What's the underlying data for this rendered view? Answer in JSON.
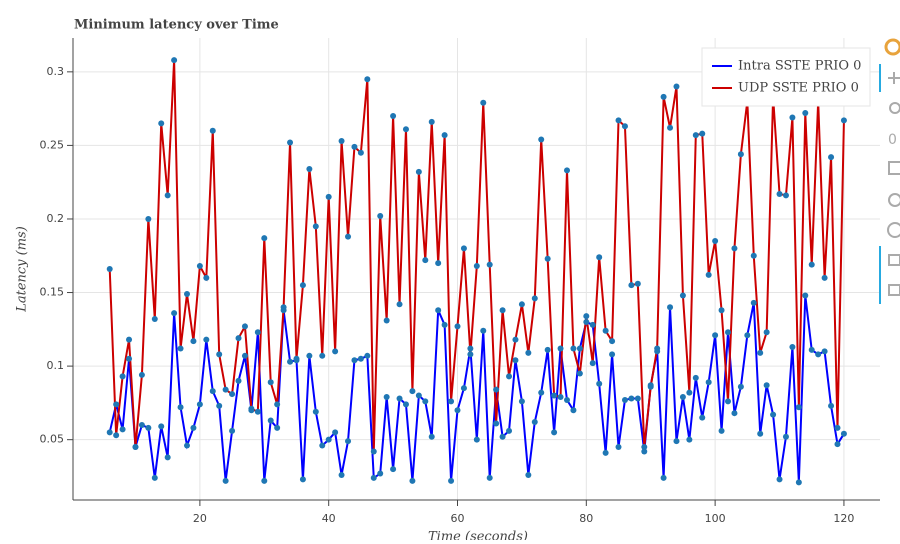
{
  "chart_data": {
    "type": "line",
    "title": "Minimum latency over Time",
    "x_label": "Time (seconds)",
    "y_label": "Latency (ms)",
    "x": [
      6,
      7,
      8,
      9,
      10,
      11,
      12,
      13,
      14,
      15,
      16,
      17,
      18,
      19,
      20,
      21,
      22,
      23,
      24,
      25,
      26,
      27,
      28,
      29,
      30,
      31,
      32,
      33,
      34,
      35,
      36,
      37,
      38,
      39,
      40,
      41,
      42,
      43,
      44,
      45,
      46,
      47,
      48,
      49,
      50,
      51,
      52,
      53,
      54,
      55,
      56,
      57,
      58,
      59,
      60,
      61,
      62,
      63,
      64,
      65,
      66,
      67,
      68,
      69,
      70,
      71,
      72,
      73,
      74,
      75,
      76,
      77,
      78,
      79,
      80,
      81,
      82,
      83,
      84,
      85,
      86,
      87,
      88,
      89,
      90,
      91,
      92,
      93,
      94,
      95,
      96,
      97,
      98,
      99,
      100,
      101,
      102,
      103,
      104,
      105,
      106,
      107,
      108,
      109,
      110,
      111,
      112,
      113,
      114,
      115,
      116,
      117,
      118,
      119,
      120
    ],
    "series": [
      {
        "name": "Intra SSTE PRIO 0",
        "color": "#0000ff",
        "values": [
          0.055,
          0.074,
          0.057,
          0.105,
          0.045,
          0.06,
          0.058,
          0.024,
          0.059,
          0.038,
          0.136,
          0.072,
          0.046,
          0.058,
          0.074,
          0.118,
          0.083,
          0.073,
          0.022,
          0.056,
          0.09,
          0.107,
          0.07,
          0.123,
          0.022,
          0.063,
          0.058,
          0.138,
          0.103,
          0.104,
          0.023,
          0.107,
          0.069,
          0.046,
          0.05,
          0.055,
          0.026,
          0.049,
          0.104,
          0.105,
          0.107,
          0.024,
          0.027,
          0.079,
          0.03,
          0.078,
          0.074,
          0.022,
          0.08,
          0.076,
          0.052,
          0.138,
          0.128,
          0.022,
          0.07,
          0.085,
          0.112,
          0.05,
          0.124,
          0.024,
          0.084,
          0.052,
          0.056,
          0.104,
          0.076,
          0.026,
          0.062,
          0.082,
          0.111,
          0.055,
          0.112,
          0.077,
          0.07,
          0.112,
          0.13,
          0.128,
          0.088,
          0.041,
          0.108,
          0.045,
          0.077,
          0.078,
          0.078,
          0.042,
          0.087,
          0.11,
          0.024,
          0.14,
          0.049,
          0.079,
          0.05,
          0.092,
          0.065,
          0.089,
          0.121,
          0.056,
          0.123,
          0.068,
          0.086,
          0.121,
          0.143,
          0.054,
          0.087,
          0.067,
          0.023,
          0.052,
          0.113,
          0.021,
          0.148,
          0.111,
          0.108,
          0.11,
          0.073,
          0.047,
          0.054
        ]
      },
      {
        "name": "UDP SSTE PRIO 0",
        "color": "#cc0000",
        "values": [
          0.166,
          0.053,
          0.093,
          0.118,
          0.045,
          0.094,
          0.2,
          0.132,
          0.265,
          0.216,
          0.308,
          0.112,
          0.149,
          0.117,
          0.168,
          0.16,
          0.26,
          0.108,
          0.084,
          0.081,
          0.119,
          0.127,
          0.071,
          0.069,
          0.187,
          0.089,
          0.074,
          0.14,
          0.252,
          0.105,
          0.155,
          0.234,
          0.195,
          0.107,
          0.215,
          0.11,
          0.253,
          0.188,
          0.249,
          0.245,
          0.295,
          0.042,
          0.202,
          0.131,
          0.27,
          0.142,
          0.261,
          0.083,
          0.232,
          0.172,
          0.266,
          0.17,
          0.257,
          0.076,
          0.127,
          0.18,
          0.108,
          0.168,
          0.279,
          0.169,
          0.061,
          0.138,
          0.093,
          0.118,
          0.142,
          0.109,
          0.146,
          0.254,
          0.173,
          0.08,
          0.079,
          0.233,
          0.112,
          0.095,
          0.134,
          0.102,
          0.174,
          0.124,
          0.117,
          0.267,
          0.263,
          0.155,
          0.156,
          0.045,
          0.086,
          0.112,
          0.283,
          0.262,
          0.29,
          0.148,
          0.082,
          0.257,
          0.258,
          0.162,
          0.185,
          0.138,
          0.076,
          0.18,
          0.244,
          0.28,
          0.175,
          0.109,
          0.123,
          0.283,
          0.217,
          0.216,
          0.269,
          0.072,
          0.272,
          0.169,
          0.28,
          0.16,
          0.242,
          0.058,
          0.267
        ]
      }
    ],
    "marker_color": "#1f77b4",
    "xlim": [
      0.3,
      125.6
    ],
    "ylim": [
      0.009,
      0.323
    ],
    "xticks": [
      20,
      40,
      60,
      80,
      100,
      120
    ],
    "yticks": [
      0.05,
      0.1,
      0.15,
      0.2,
      0.25,
      0.3
    ],
    "grid": true,
    "legend": "top-right"
  }
}
